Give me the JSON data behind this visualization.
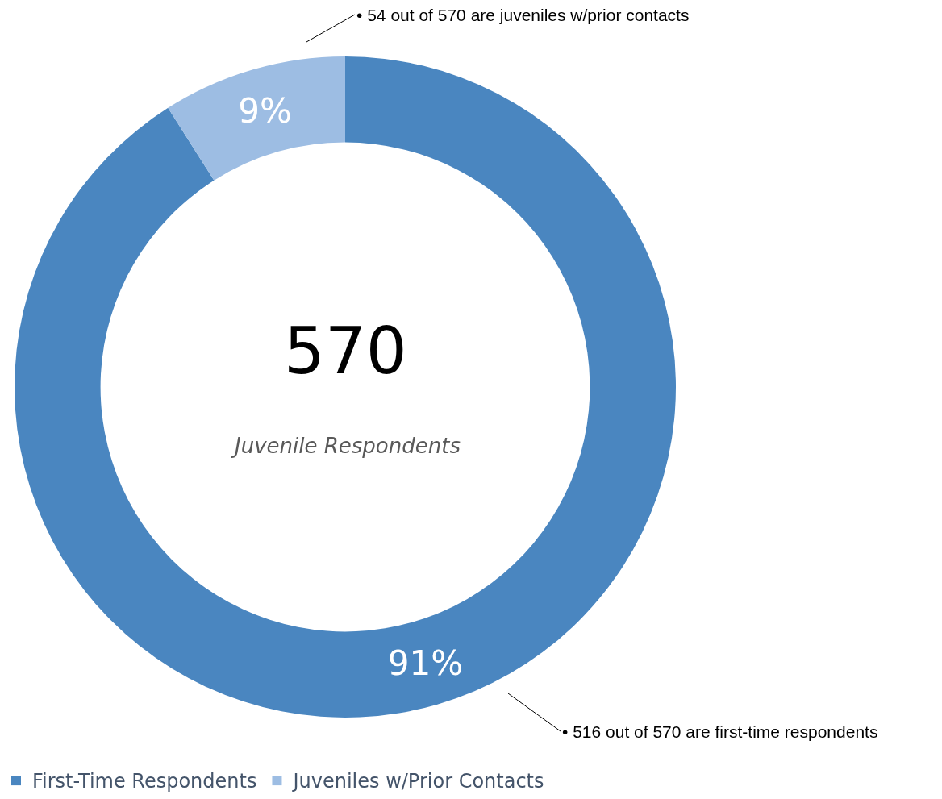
{
  "chart_data": {
    "type": "donut",
    "categories": [
      "First-Time Respondents",
      "Juveniles w/Prior Contacts"
    ],
    "values": [
      91,
      9
    ],
    "colors": [
      "#4a86c0",
      "#9dbde3"
    ],
    "value_labels": [
      "91%",
      "9%"
    ],
    "legend": "bottom",
    "annotations": [
      "570",
      "Juvenile Respondents",
      "• 54 out of 570 are juveniles w/prior contacts",
      "• 516 out of 570 are first-time respondents"
    ]
  }
}
